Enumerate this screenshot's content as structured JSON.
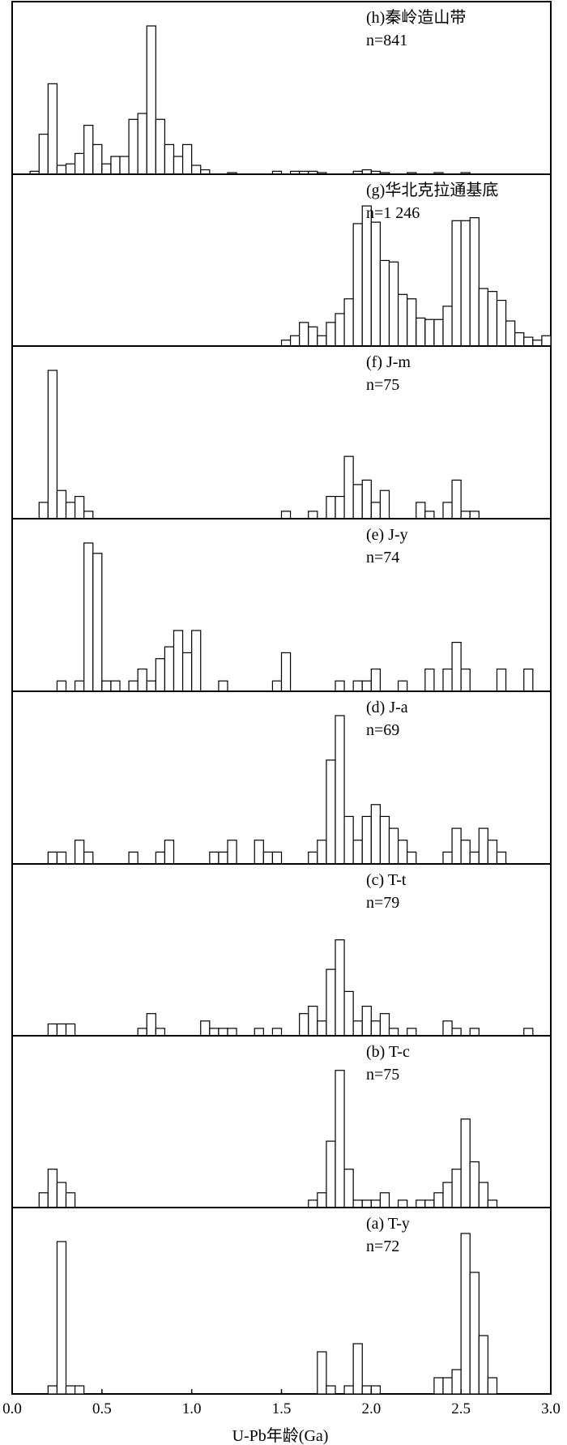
{
  "chart_data": {
    "type": "bar",
    "xlabel": "U-Pb年龄(Ga)",
    "xlim": [
      0.0,
      3.0
    ],
    "x_tick_labels": [
      "0.0",
      "0.5",
      "1.0",
      "1.5",
      "2.0",
      "2.5",
      "3.0"
    ],
    "bin_width": 0.05,
    "panels": [
      {
        "id": "h",
        "label": "(h)秦岭造山带",
        "n": "n=841",
        "bins": [
          {
            "x": 0.15,
            "c": 0.02
          },
          {
            "x": 0.2,
            "c": 0.27
          },
          {
            "x": 0.25,
            "c": 0.61
          },
          {
            "x": 0.3,
            "c": 0.06
          },
          {
            "x": 0.35,
            "c": 0.07
          },
          {
            "x": 0.4,
            "c": 0.14
          },
          {
            "x": 0.45,
            "c": 0.33
          },
          {
            "x": 0.5,
            "c": 0.2
          },
          {
            "x": 0.55,
            "c": 0.07
          },
          {
            "x": 0.6,
            "c": 0.12
          },
          {
            "x": 0.65,
            "c": 0.12
          },
          {
            "x": 0.7,
            "c": 0.37
          },
          {
            "x": 0.75,
            "c": 0.41
          },
          {
            "x": 0.8,
            "c": 1.0
          },
          {
            "x": 0.85,
            "c": 0.37
          },
          {
            "x": 0.9,
            "c": 0.2
          },
          {
            "x": 0.95,
            "c": 0.12
          },
          {
            "x": 1.0,
            "c": 0.2
          },
          {
            "x": 1.05,
            "c": 0.06
          },
          {
            "x": 1.1,
            "c": 0.03
          },
          {
            "x": 1.25,
            "c": 0.01
          },
          {
            "x": 1.5,
            "c": 0.02
          },
          {
            "x": 1.6,
            "c": 0.02
          },
          {
            "x": 1.65,
            "c": 0.02
          },
          {
            "x": 1.7,
            "c": 0.02
          },
          {
            "x": 1.75,
            "c": 0.01
          },
          {
            "x": 1.95,
            "c": 0.02
          },
          {
            "x": 2.0,
            "c": 0.03
          },
          {
            "x": 2.05,
            "c": 0.02
          },
          {
            "x": 2.1,
            "c": 0.01
          },
          {
            "x": 2.25,
            "c": 0.01
          },
          {
            "x": 2.4,
            "c": 0.01
          },
          {
            "x": 2.55,
            "c": 0.01
          }
        ]
      },
      {
        "id": "g",
        "label": "(g)华北克拉通基底",
        "n": "n=1 246",
        "bins": [
          {
            "x": 1.55,
            "c": 0.04
          },
          {
            "x": 1.6,
            "c": 0.07
          },
          {
            "x": 1.65,
            "c": 0.16
          },
          {
            "x": 1.7,
            "c": 0.13
          },
          {
            "x": 1.75,
            "c": 0.07
          },
          {
            "x": 1.8,
            "c": 0.16
          },
          {
            "x": 1.85,
            "c": 0.22
          },
          {
            "x": 1.9,
            "c": 0.32
          },
          {
            "x": 1.95,
            "c": 0.83
          },
          {
            "x": 2.0,
            "c": 0.95
          },
          {
            "x": 2.05,
            "c": 0.84
          },
          {
            "x": 2.1,
            "c": 0.58
          },
          {
            "x": 2.15,
            "c": 0.57
          },
          {
            "x": 2.2,
            "c": 0.35
          },
          {
            "x": 2.25,
            "c": 0.32
          },
          {
            "x": 2.3,
            "c": 0.19
          },
          {
            "x": 2.35,
            "c": 0.18
          },
          {
            "x": 2.4,
            "c": 0.18
          },
          {
            "x": 2.45,
            "c": 0.27
          },
          {
            "x": 2.5,
            "c": 0.85
          },
          {
            "x": 2.55,
            "c": 0.85
          },
          {
            "x": 2.6,
            "c": 0.87
          },
          {
            "x": 2.65,
            "c": 0.39
          },
          {
            "x": 2.7,
            "c": 0.37
          },
          {
            "x": 2.75,
            "c": 0.31
          },
          {
            "x": 2.8,
            "c": 0.17
          },
          {
            "x": 2.85,
            "c": 0.09
          },
          {
            "x": 2.9,
            "c": 0.06
          },
          {
            "x": 2.95,
            "c": 0.04
          },
          {
            "x": 3.0,
            "c": 0.07
          }
        ]
      },
      {
        "id": "f",
        "label": "(f) J-m",
        "n": "n=75",
        "bins": [
          {
            "x": 0.2,
            "c": 0.11
          },
          {
            "x": 0.25,
            "c": 1.0
          },
          {
            "x": 0.3,
            "c": 0.19
          },
          {
            "x": 0.35,
            "c": 0.11
          },
          {
            "x": 0.4,
            "c": 0.15
          },
          {
            "x": 0.45,
            "c": 0.05
          },
          {
            "x": 1.55,
            "c": 0.05
          },
          {
            "x": 1.7,
            "c": 0.05
          },
          {
            "x": 1.8,
            "c": 0.15
          },
          {
            "x": 1.85,
            "c": 0.15
          },
          {
            "x": 1.9,
            "c": 0.42
          },
          {
            "x": 1.95,
            "c": 0.23
          },
          {
            "x": 2.0,
            "c": 0.26
          },
          {
            "x": 2.05,
            "c": 0.11
          },
          {
            "x": 2.1,
            "c": 0.19
          },
          {
            "x": 2.3,
            "c": 0.11
          },
          {
            "x": 2.35,
            "c": 0.05
          },
          {
            "x": 2.45,
            "c": 0.11
          },
          {
            "x": 2.5,
            "c": 0.26
          },
          {
            "x": 2.55,
            "c": 0.05
          },
          {
            "x": 2.6,
            "c": 0.05
          }
        ]
      },
      {
        "id": "e",
        "label": "(e)  J-y",
        "n": "n=74",
        "bins": [
          {
            "x": 0.3,
            "c": 0.07
          },
          {
            "x": 0.4,
            "c": 0.07
          },
          {
            "x": 0.45,
            "c": 1.0
          },
          {
            "x": 0.5,
            "c": 0.93
          },
          {
            "x": 0.55,
            "c": 0.07
          },
          {
            "x": 0.6,
            "c": 0.07
          },
          {
            "x": 0.7,
            "c": 0.07
          },
          {
            "x": 0.75,
            "c": 0.15
          },
          {
            "x": 0.8,
            "c": 0.07
          },
          {
            "x": 0.85,
            "c": 0.22
          },
          {
            "x": 0.9,
            "c": 0.3
          },
          {
            "x": 0.95,
            "c": 0.41
          },
          {
            "x": 1.0,
            "c": 0.26
          },
          {
            "x": 1.05,
            "c": 0.41
          },
          {
            "x": 1.2,
            "c": 0.07
          },
          {
            "x": 1.5,
            "c": 0.07
          },
          {
            "x": 1.55,
            "c": 0.26
          },
          {
            "x": 1.85,
            "c": 0.07
          },
          {
            "x": 1.95,
            "c": 0.07
          },
          {
            "x": 2.0,
            "c": 0.07
          },
          {
            "x": 2.05,
            "c": 0.15
          },
          {
            "x": 2.2,
            "c": 0.07
          },
          {
            "x": 2.35,
            "c": 0.15
          },
          {
            "x": 2.45,
            "c": 0.15
          },
          {
            "x": 2.5,
            "c": 0.33
          },
          {
            "x": 2.55,
            "c": 0.15
          },
          {
            "x": 2.75,
            "c": 0.15
          },
          {
            "x": 2.9,
            "c": 0.15
          }
        ]
      },
      {
        "id": "d",
        "label": "(d)  J-a",
        "n": "n=69",
        "bins": [
          {
            "x": 0.25,
            "c": 0.08
          },
          {
            "x": 0.3,
            "c": 0.08
          },
          {
            "x": 0.4,
            "c": 0.16
          },
          {
            "x": 0.45,
            "c": 0.08
          },
          {
            "x": 0.7,
            "c": 0.08
          },
          {
            "x": 0.85,
            "c": 0.08
          },
          {
            "x": 0.9,
            "c": 0.16
          },
          {
            "x": 1.15,
            "c": 0.08
          },
          {
            "x": 1.2,
            "c": 0.08
          },
          {
            "x": 1.25,
            "c": 0.16
          },
          {
            "x": 1.4,
            "c": 0.16
          },
          {
            "x": 1.45,
            "c": 0.08
          },
          {
            "x": 1.5,
            "c": 0.08
          },
          {
            "x": 1.7,
            "c": 0.08
          },
          {
            "x": 1.75,
            "c": 0.16
          },
          {
            "x": 1.8,
            "c": 0.7
          },
          {
            "x": 1.85,
            "c": 1.0
          },
          {
            "x": 1.9,
            "c": 0.32
          },
          {
            "x": 1.95,
            "c": 0.16
          },
          {
            "x": 2.0,
            "c": 0.32
          },
          {
            "x": 2.05,
            "c": 0.4
          },
          {
            "x": 2.1,
            "c": 0.32
          },
          {
            "x": 2.15,
            "c": 0.24
          },
          {
            "x": 2.2,
            "c": 0.16
          },
          {
            "x": 2.25,
            "c": 0.08
          },
          {
            "x": 2.45,
            "c": 0.08
          },
          {
            "x": 2.5,
            "c": 0.24
          },
          {
            "x": 2.55,
            "c": 0.16
          },
          {
            "x": 2.6,
            "c": 0.08
          },
          {
            "x": 2.65,
            "c": 0.24
          },
          {
            "x": 2.7,
            "c": 0.16
          },
          {
            "x": 2.75,
            "c": 0.08
          }
        ]
      },
      {
        "id": "c",
        "label": "(c)  T-t",
        "n": "n=79",
        "bins": [
          {
            "x": 0.25,
            "c": 0.08
          },
          {
            "x": 0.3,
            "c": 0.08
          },
          {
            "x": 0.35,
            "c": 0.08
          },
          {
            "x": 0.75,
            "c": 0.05
          },
          {
            "x": 0.8,
            "c": 0.15
          },
          {
            "x": 0.85,
            "c": 0.05
          },
          {
            "x": 1.1,
            "c": 0.1
          },
          {
            "x": 1.15,
            "c": 0.05
          },
          {
            "x": 1.2,
            "c": 0.05
          },
          {
            "x": 1.25,
            "c": 0.05
          },
          {
            "x": 1.4,
            "c": 0.05
          },
          {
            "x": 1.5,
            "c": 0.05
          },
          {
            "x": 1.65,
            "c": 0.15
          },
          {
            "x": 1.7,
            "c": 0.2
          },
          {
            "x": 1.75,
            "c": 0.1
          },
          {
            "x": 1.8,
            "c": 0.45
          },
          {
            "x": 1.85,
            "c": 0.65
          },
          {
            "x": 1.9,
            "c": 0.3
          },
          {
            "x": 1.95,
            "c": 0.1
          },
          {
            "x": 2.0,
            "c": 0.2
          },
          {
            "x": 2.05,
            "c": 0.1
          },
          {
            "x": 2.1,
            "c": 0.15
          },
          {
            "x": 2.15,
            "c": 0.05
          },
          {
            "x": 2.25,
            "c": 0.05
          },
          {
            "x": 2.45,
            "c": 0.1
          },
          {
            "x": 2.5,
            "c": 0.05
          },
          {
            "x": 2.6,
            "c": 0.05
          },
          {
            "x": 2.9,
            "c": 0.05
          }
        ]
      },
      {
        "id": "b",
        "label": "(b)  T-c",
        "n": "n=75",
        "bins": [
          {
            "x": 0.2,
            "c": 0.1
          },
          {
            "x": 0.25,
            "c": 0.26
          },
          {
            "x": 0.3,
            "c": 0.17
          },
          {
            "x": 0.35,
            "c": 0.1
          },
          {
            "x": 1.7,
            "c": 0.05
          },
          {
            "x": 1.75,
            "c": 0.1
          },
          {
            "x": 1.8,
            "c": 0.45
          },
          {
            "x": 1.85,
            "c": 0.93
          },
          {
            "x": 1.9,
            "c": 0.26
          },
          {
            "x": 1.95,
            "c": 0.05
          },
          {
            "x": 2.0,
            "c": 0.05
          },
          {
            "x": 2.05,
            "c": 0.05
          },
          {
            "x": 2.1,
            "c": 0.1
          },
          {
            "x": 2.2,
            "c": 0.05
          },
          {
            "x": 2.3,
            "c": 0.05
          },
          {
            "x": 2.35,
            "c": 0.05
          },
          {
            "x": 2.4,
            "c": 0.1
          },
          {
            "x": 2.45,
            "c": 0.17
          },
          {
            "x": 2.5,
            "c": 0.26
          },
          {
            "x": 2.55,
            "c": 0.6
          },
          {
            "x": 2.6,
            "c": 0.31
          },
          {
            "x": 2.65,
            "c": 0.17
          },
          {
            "x": 2.7,
            "c": 0.05
          }
        ]
      },
      {
        "id": "a",
        "label": "(a)  T-y",
        "n": "n=72",
        "bins": [
          {
            "x": 0.25,
            "c": 0.05
          },
          {
            "x": 0.3,
            "c": 0.94
          },
          {
            "x": 0.35,
            "c": 0.05
          },
          {
            "x": 0.4,
            "c": 0.05
          },
          {
            "x": 1.75,
            "c": 0.26
          },
          {
            "x": 1.8,
            "c": 0.05
          },
          {
            "x": 1.9,
            "c": 0.05
          },
          {
            "x": 1.95,
            "c": 0.31
          },
          {
            "x": 2.0,
            "c": 0.05
          },
          {
            "x": 2.05,
            "c": 0.05
          },
          {
            "x": 2.4,
            "c": 0.1
          },
          {
            "x": 2.45,
            "c": 0.1
          },
          {
            "x": 2.5,
            "c": 0.15
          },
          {
            "x": 2.55,
            "c": 0.99
          },
          {
            "x": 2.6,
            "c": 0.75
          },
          {
            "x": 2.65,
            "c": 0.36
          },
          {
            "x": 2.7,
            "c": 0.1
          }
        ]
      }
    ]
  }
}
